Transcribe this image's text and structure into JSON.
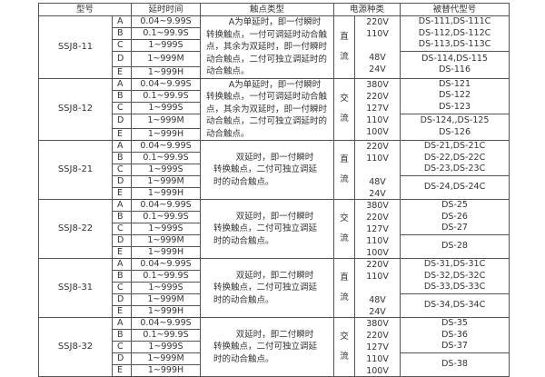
{
  "header": {
    "model": "型号",
    "delay": "延时时间",
    "contact": "触点类型",
    "power": "电源种类",
    "replacement": "被替代型号"
  },
  "groups": [
    {
      "model": "SSJ8-11",
      "rows": [
        {
          "code": "A",
          "time": "0.04~9.99S"
        },
        {
          "code": "B",
          "time": "0.1~99.9S"
        },
        {
          "code": "C",
          "time": "1~999S"
        },
        {
          "code": "D",
          "time": "1~999M"
        },
        {
          "code": "E",
          "time": "1~999H"
        }
      ],
      "contact": "A为单延时，即一付瞬时转换触点，一付可调延时动合触点，其余为双延时，即一付瞬时动合触点，二付可独立调延时的动合触点。",
      "power_type": [
        "直",
        "流"
      ],
      "voltages": [
        "220V",
        "110V",
        "48V",
        "24V"
      ],
      "replacements_top": [
        "DS-111,DS-111C",
        "DS-112,DS-112C",
        "DS-113,DS-113C"
      ],
      "replacements_bottom": [
        "DS-114,DS-115",
        "DS-116"
      ]
    },
    {
      "model": "SSJ8-12",
      "rows": [
        {
          "code": "A",
          "time": "0.04~9.99S"
        },
        {
          "code": "B",
          "time": "0.1~99.9S"
        },
        {
          "code": "C",
          "time": "1~999S"
        },
        {
          "code": "D",
          "time": "1~999M"
        },
        {
          "code": "E",
          "time": "1~999H"
        }
      ],
      "contact": "A为单延时，即一付瞬时转换触点，一付可调延时动合触点，其余为双延时，即一付瞬时动合触点，二付可独立调延时的动合触点。",
      "power_type": [
        "交",
        "流"
      ],
      "voltages": [
        "380V",
        "220V",
        "127V",
        "110V",
        "100V"
      ],
      "replacements_top": [
        "DS-121",
        "DS-122",
        "DS-123"
      ],
      "replacements_bottom": [
        "DS-124,,DS-125",
        "DS-126"
      ]
    },
    {
      "model": "SSJ8-21",
      "rows": [
        {
          "code": "A",
          "time": "0.04~9.99S"
        },
        {
          "code": "B",
          "time": "0.1~99.9S"
        },
        {
          "code": "C",
          "time": "1~999S"
        },
        {
          "code": "D",
          "time": "1~999M"
        },
        {
          "code": "E",
          "time": "1~999H"
        }
      ],
      "contact": "双延时，即一付瞬时转换触点，二付可独立调延时的动合触点。",
      "power_type": [
        "直",
        "流"
      ],
      "voltages": [
        "220V",
        "110V",
        "48V",
        "24V"
      ],
      "replacements_top": [
        "DS-21,DS-21C",
        "DS-22,DS-22C",
        "DS-23,DS-23C"
      ],
      "replacements_bottom": [
        "DS-24,DS-24C"
      ]
    },
    {
      "model": "SSJ8-22",
      "rows": [
        {
          "code": "A",
          "time": "0.04~9.99S"
        },
        {
          "code": "B",
          "time": "0.1~99.9S"
        },
        {
          "code": "C",
          "time": "1~999S"
        },
        {
          "code": "D",
          "time": "1~999M"
        },
        {
          "code": "E",
          "time": "1~999H"
        }
      ],
      "contact": "双延时，即一付瞬时转换触点，二付可独立调延时的动合触点。",
      "power_type": [
        "交",
        "流"
      ],
      "voltages": [
        "380V",
        "220V",
        "127V",
        "110V",
        "100V"
      ],
      "replacements_top": [
        "DS-25",
        "DS-26",
        "DS-27"
      ],
      "replacements_bottom": [
        "DS-28"
      ]
    },
    {
      "model": "SSJ8-31",
      "rows": [
        {
          "code": "A",
          "time": "0.04~9.99S"
        },
        {
          "code": "B",
          "time": "0.1~99.9S"
        },
        {
          "code": "C",
          "time": "1~999S"
        },
        {
          "code": "D",
          "time": "1~999M"
        },
        {
          "code": "E",
          "time": "1~999H"
        }
      ],
      "contact": "双延时，即二付瞬时转换触点，二付可独立调延时的动合触点。",
      "power_type": [
        "直",
        "流"
      ],
      "voltages": [
        "220V",
        "110V",
        "48V",
        "24V"
      ],
      "replacements_top": [
        "DS-31,DS-31C",
        "DS-32,DS-32C",
        "DS-33,DS-33C"
      ],
      "replacements_bottom": [
        "DS-34,DS-34C"
      ]
    },
    {
      "model": "SSJ8-32",
      "rows": [
        {
          "code": "A",
          "time": "0.04~9.99S"
        },
        {
          "code": "B",
          "time": "0.1~99.9S"
        },
        {
          "code": "C",
          "time": "1~999S"
        },
        {
          "code": "D",
          "time": "1~999M"
        },
        {
          "code": "E",
          "time": "1~999H"
        }
      ],
      "contact": "双延时，即二付瞬时转换触点，二付可独立调延时的动合触点。",
      "power_type": [
        "交",
        "流"
      ],
      "voltages": [
        "380V",
        "220V",
        "127V",
        "110V",
        "100V"
      ],
      "replacements_top": [
        "DS-35",
        "DS-36",
        "DS-37"
      ],
      "replacements_bottom": [
        "DS-38"
      ]
    }
  ]
}
